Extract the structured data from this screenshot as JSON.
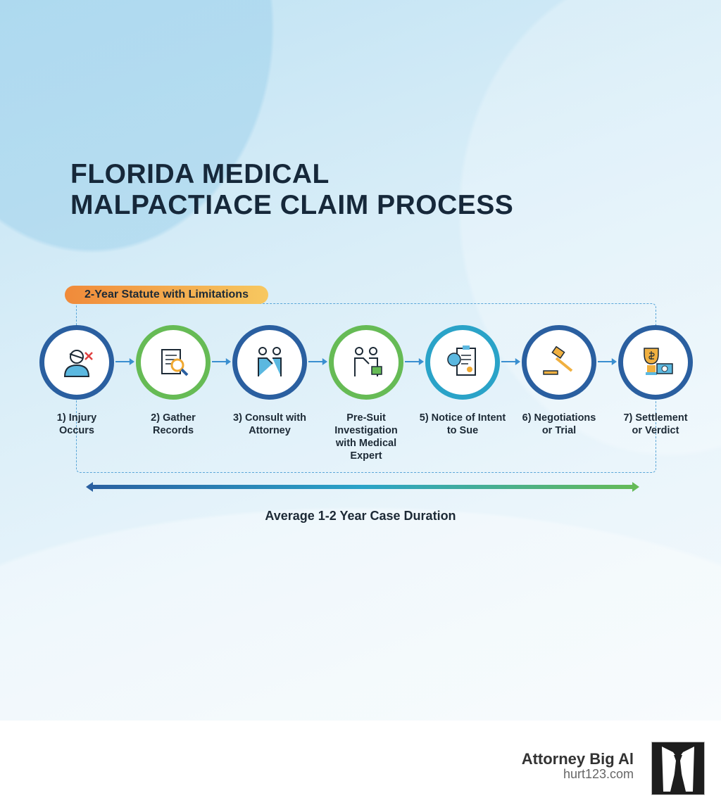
{
  "title_lines": [
    "FLORIDA MEDICAL",
    "MALPACTIACE CLAIM PROCESS"
  ],
  "statute_badge": "2-Year Statute with Limitations",
  "steps": [
    {
      "lines": [
        "1) Injury",
        "Occurs"
      ],
      "icon": "injured-patient-icon",
      "ring_color": "#2a5fa0"
    },
    {
      "lines": [
        "2) Gather",
        "Records"
      ],
      "icon": "documents-magnifier-icon",
      "ring_color": "#66bb55"
    },
    {
      "lines": [
        "3) Consult with",
        "Attorney"
      ],
      "icon": "handshake-icon",
      "ring_color": "#2a5fa0"
    },
    {
      "lines": [
        "Pre-Suit",
        "Investigation",
        "with Medical",
        "Expert"
      ],
      "icon": "expert-handshake-icon",
      "ring_color": "#66bb55"
    },
    {
      "lines": [
        "5) Notice of Intent",
        "to Sue"
      ],
      "icon": "clipboard-brain-icon",
      "ring_color": "#2aa3c8"
    },
    {
      "lines": [
        "6) Negotiations",
        "or Trial"
      ],
      "icon": "gavel-icon",
      "ring_color": "#2a5fa0"
    },
    {
      "lines": [
        "7) Settlement",
        "or Verdict"
      ],
      "icon": "trophy-money-icon",
      "ring_color": "#2a5fa0"
    }
  ],
  "duration_caption": "Average 1-2 Year Case Duration",
  "timeline_colors": [
    "#2a5fa0",
    "#2aa3c8",
    "#66bb55"
  ],
  "brand": {
    "name": "Attorney Big Al",
    "url": "hurt123.com"
  }
}
